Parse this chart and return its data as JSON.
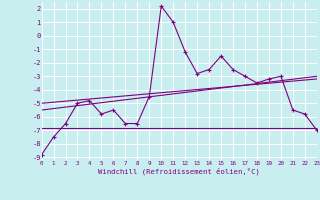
{
  "xlabel": "Windchill (Refroidissement éolien,°C)",
  "bg_color": "#c8eef0",
  "grid_color": "#ffffff",
  "line_color": "#800080",
  "xlim": [
    0,
    23
  ],
  "ylim": [
    -9.2,
    2.5
  ],
  "yticks": [
    2,
    1,
    0,
    -1,
    -2,
    -3,
    -4,
    -5,
    -6,
    -7,
    -8,
    -9
  ],
  "xticks": [
    0,
    1,
    2,
    3,
    4,
    5,
    6,
    7,
    8,
    9,
    10,
    11,
    12,
    13,
    14,
    15,
    16,
    17,
    18,
    19,
    20,
    21,
    22,
    23
  ],
  "series1_x": [
    0,
    1,
    2,
    3,
    4,
    5,
    6,
    7,
    8,
    9,
    10,
    11,
    12,
    13,
    14,
    15,
    16,
    17,
    18,
    19,
    20,
    21,
    22,
    23
  ],
  "series1_y": [
    -8.8,
    -7.5,
    -6.5,
    -5.0,
    -4.8,
    -5.8,
    -5.5,
    -6.5,
    -6.5,
    -4.5,
    2.2,
    1.0,
    -1.2,
    -2.8,
    -2.5,
    -1.5,
    -2.5,
    -3.0,
    -3.5,
    -3.2,
    -3.0,
    -5.5,
    -5.8,
    -7.0
  ],
  "series3_x": [
    0,
    23
  ],
  "series3_y": [
    -6.8,
    -6.8
  ],
  "series4_x": [
    0,
    23
  ],
  "series4_y": [
    -5.5,
    -3.0
  ],
  "series5_x": [
    0,
    23
  ],
  "series5_y": [
    -5.0,
    -3.2
  ]
}
